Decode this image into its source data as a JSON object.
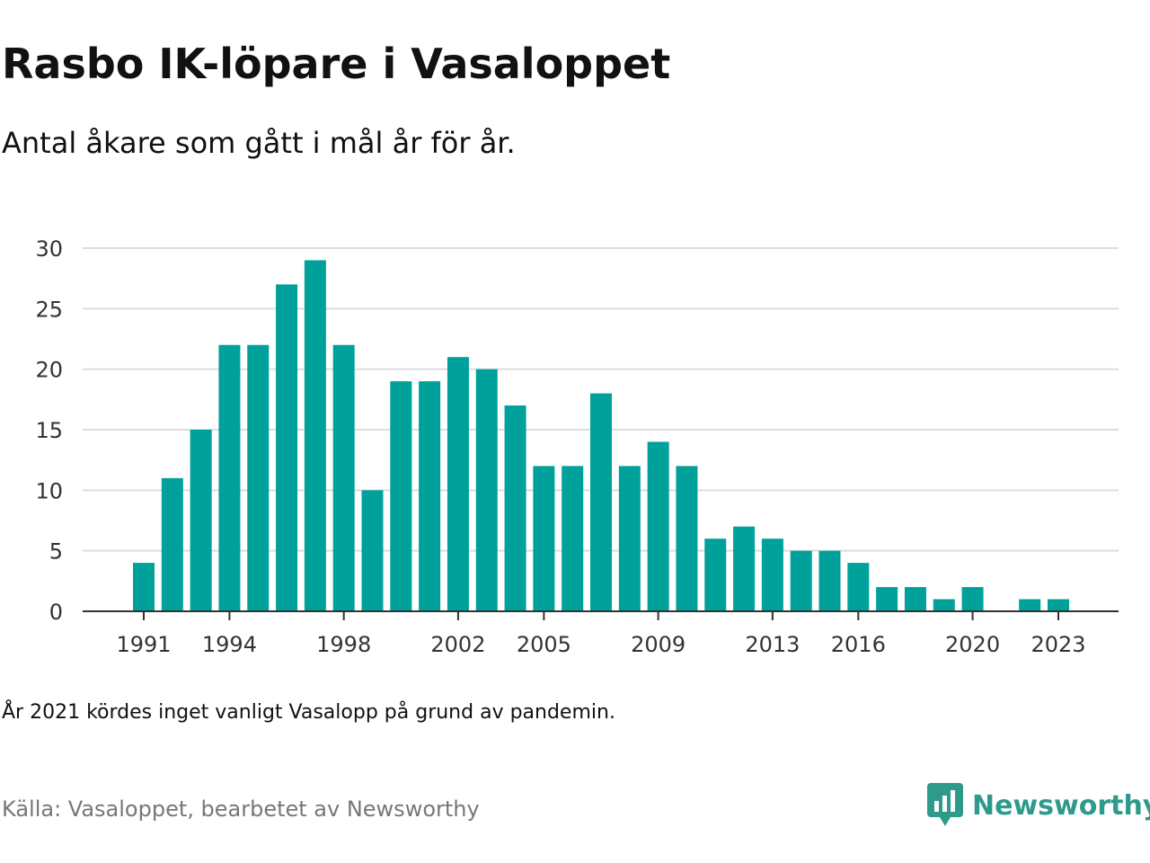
{
  "title": "Rasbo IK-löpare i Vasaloppet",
  "subtitle": "Antal åkare som gått i mål år för år.",
  "note": "År 2021 kördes inget vanligt Vasalopp på grund av pandemin.",
  "source": "Källa: Vasaloppet, bearbetet av Newsworthy",
  "brand": {
    "name": "Newsworthy",
    "icon": "newsworthy-logo-icon",
    "color": "#2e9a8c"
  },
  "chart_data": {
    "type": "bar",
    "x": [
      1991,
      1992,
      1993,
      1994,
      1995,
      1996,
      1997,
      1998,
      1999,
      2000,
      2001,
      2002,
      2003,
      2004,
      2005,
      2006,
      2007,
      2008,
      2009,
      2010,
      2011,
      2012,
      2013,
      2014,
      2015,
      2016,
      2017,
      2018,
      2019,
      2020,
      2021,
      2022,
      2023
    ],
    "values": [
      4,
      11,
      15,
      22,
      22,
      27,
      29,
      22,
      10,
      19,
      19,
      21,
      20,
      17,
      12,
      12,
      18,
      12,
      14,
      12,
      6,
      7,
      6,
      5,
      5,
      4,
      2,
      2,
      1,
      2,
      0,
      1,
      1
    ],
    "x_ticks": [
      1991,
      1994,
      1998,
      2002,
      2005,
      2009,
      2013,
      2016,
      2020,
      2023
    ],
    "y_ticks": [
      0,
      5,
      10,
      15,
      20,
      25,
      30
    ],
    "ylim": [
      0,
      30
    ],
    "xlabel": "",
    "ylabel": "",
    "bar_color": "#00a19a",
    "grid": true,
    "legend": "none"
  }
}
